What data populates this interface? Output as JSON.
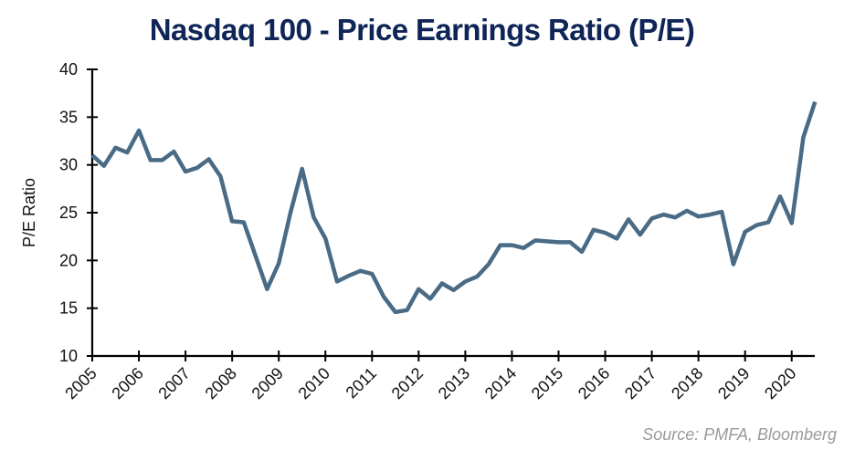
{
  "chart_data": {
    "type": "line",
    "title": "Nasdaq 100 - Price Earnings Ratio (P/E)",
    "xlabel": "",
    "ylabel": "P/E Ratio",
    "ylim": [
      10,
      40
    ],
    "yticks": [
      "10",
      "15",
      "20",
      "25",
      "30",
      "35",
      "40"
    ],
    "xlim": [
      2005,
      2020.5
    ],
    "xticks": [
      "2005",
      "2006",
      "2007",
      "2008",
      "2009",
      "2010",
      "2011",
      "2012",
      "2013",
      "2014",
      "2015",
      "2016",
      "2017",
      "2018",
      "2019",
      "2020"
    ],
    "grid": false,
    "line_color": "#4a6b85",
    "x": [
      2005,
      2005.25,
      2005.5,
      2005.75,
      2006,
      2006.25,
      2006.5,
      2006.75,
      2007,
      2007.25,
      2007.5,
      2007.75,
      2008,
      2008.25,
      2008.5,
      2008.75,
      2009,
      2009.25,
      2009.5,
      2009.75,
      2010,
      2010.25,
      2010.5,
      2010.75,
      2011,
      2011.25,
      2011.5,
      2011.75,
      2012,
      2012.25,
      2012.5,
      2012.75,
      2013,
      2013.25,
      2013.5,
      2013.75,
      2014,
      2014.25,
      2014.5,
      2014.75,
      2015,
      2015.25,
      2015.5,
      2015.75,
      2016,
      2016.25,
      2016.5,
      2016.75,
      2017,
      2017.25,
      2017.5,
      2017.75,
      2018,
      2018.25,
      2018.5,
      2018.75,
      2019,
      2019.25,
      2019.5,
      2019.75,
      2020,
      2020.25,
      2020.5
    ],
    "values": [
      31.0,
      29.9,
      31.8,
      31.3,
      33.6,
      30.5,
      30.5,
      31.4,
      29.3,
      29.7,
      30.6,
      28.8,
      24.1,
      24.0,
      20.5,
      17.0,
      19.7,
      25.0,
      29.6,
      24.5,
      22.3,
      17.8,
      18.4,
      18.9,
      18.6,
      16.2,
      14.6,
      14.8,
      17.0,
      16.0,
      17.6,
      16.9,
      17.8,
      18.3,
      19.6,
      21.6,
      21.6,
      21.3,
      22.1,
      22.0,
      21.9,
      21.9,
      20.9,
      23.2,
      22.9,
      22.3,
      24.3,
      22.7,
      24.4,
      24.8,
      24.5,
      25.2,
      24.6,
      24.8,
      25.1,
      19.6,
      23.0,
      23.7,
      24.0,
      26.7,
      23.9,
      32.9,
      36.6
    ]
  },
  "source": "Source: PMFA, Bloomberg"
}
